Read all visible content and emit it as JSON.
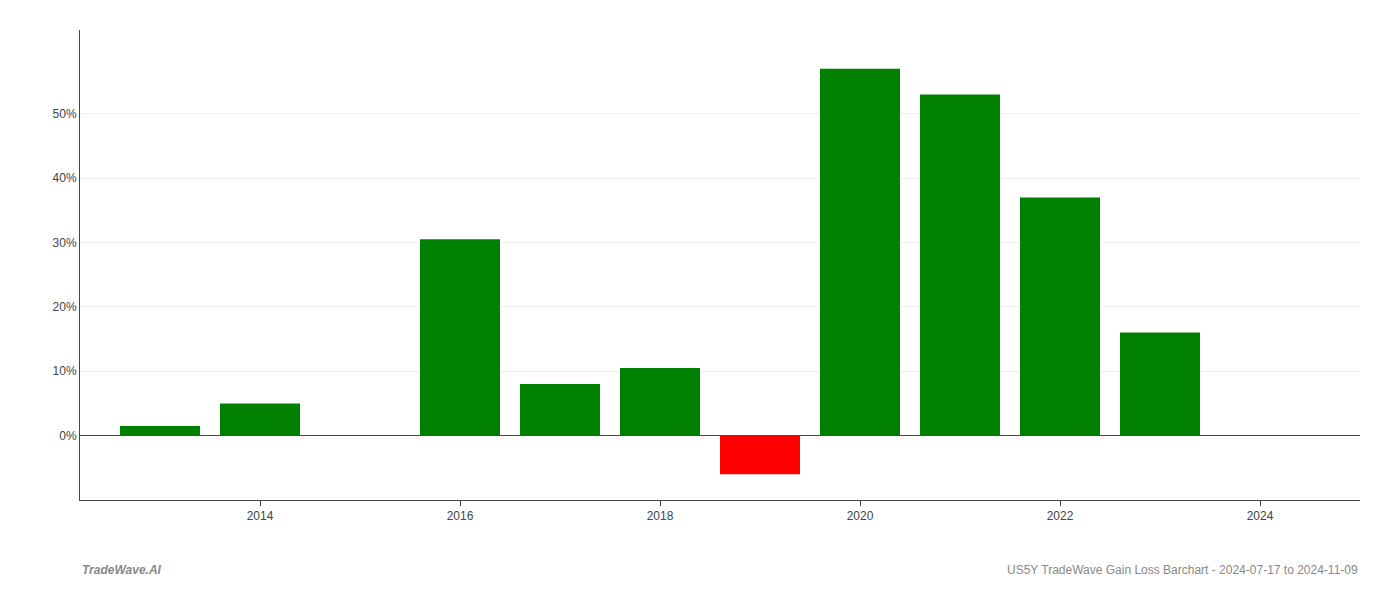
{
  "chart_data": {
    "type": "bar",
    "x": [
      2013,
      2014,
      2016,
      2017,
      2018,
      2019,
      2020,
      2021,
      2022,
      2023
    ],
    "values": [
      1.5,
      5.0,
      30.5,
      8.0,
      10.5,
      -6.0,
      57.0,
      53.0,
      37.0,
      16.0
    ],
    "colors": [
      "#008000",
      "#008000",
      "#008000",
      "#008000",
      "#008000",
      "#ff0000",
      "#008000",
      "#008000",
      "#008000",
      "#008000"
    ],
    "xlim": [
      2012.2,
      2025.0
    ],
    "ylim": [
      -10,
      63
    ],
    "xticks": [
      2014,
      2016,
      2018,
      2020,
      2022,
      2024
    ],
    "yticks": [
      {
        "value": 0,
        "label": "0%"
      },
      {
        "value": 10,
        "label": "10%"
      },
      {
        "value": 20,
        "label": "20%"
      },
      {
        "value": 30,
        "label": "30%"
      },
      {
        "value": 40,
        "label": "40%"
      },
      {
        "value": 50,
        "label": "50%"
      }
    ],
    "grid": true,
    "annotations": [
      "TradeWave.AI",
      "US5Y TradeWave Gain Loss Barchart - 2024-07-17 to 2024-11-09"
    ]
  }
}
